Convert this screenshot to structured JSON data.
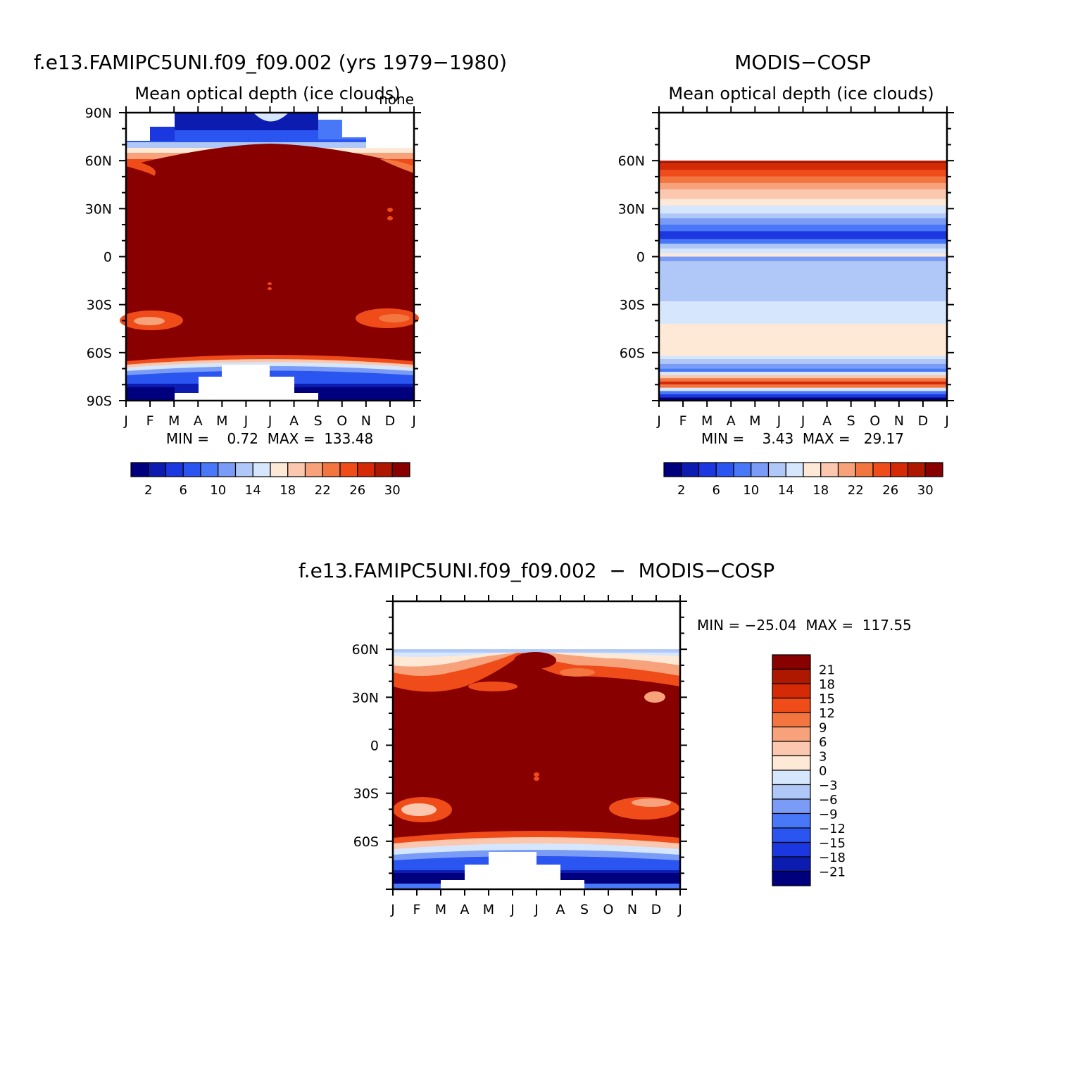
{
  "chart_data": [
    {
      "type": "heatmap",
      "title": "f.e13.FAMIPC5UNI.f09_f09.002 (yrs 1979−1980)",
      "subtitle": "Mean optical depth (ice clouds)",
      "units": "none",
      "x_ticks": [
        "J",
        "F",
        "M",
        "A",
        "M",
        "J",
        "J",
        "A",
        "S",
        "O",
        "N",
        "D",
        "J"
      ],
      "y_ticks": [
        "90N",
        "60N",
        "30N",
        "0",
        "30S",
        "60S",
        "90S"
      ],
      "y_tick_values": [
        90,
        60,
        30,
        0,
        -30,
        -60,
        -90
      ],
      "ylim": [
        -90,
        90
      ],
      "stats": "MIN =    0.72  MAX =  133.48",
      "min": 0.72,
      "max": 133.48,
      "colorbar_ticks": [
        "2",
        "6",
        "10",
        "14",
        "18",
        "22",
        "26",
        "30"
      ],
      "colorbar_levels": [
        0,
        2,
        4,
        6,
        8,
        10,
        12,
        14,
        16,
        18,
        20,
        22,
        24,
        26,
        28,
        30,
        32
      ]
    },
    {
      "type": "heatmap",
      "title": "MODIS−COSP",
      "subtitle": "Mean optical depth (ice clouds)",
      "x_ticks": [
        "J",
        "F",
        "M",
        "A",
        "M",
        "J",
        "J",
        "A",
        "S",
        "O",
        "N",
        "D",
        "J"
      ],
      "y_ticks": [
        "60N",
        "30N",
        "0",
        "30S",
        "60S"
      ],
      "y_tick_values": [
        60,
        30,
        0,
        -30,
        -60
      ],
      "ylim": [
        -90,
        90
      ],
      "stats": "MIN =    3.43  MAX =   29.17",
      "min": 3.43,
      "max": 29.17,
      "colorbar_ticks": [
        "2",
        "6",
        "10",
        "14",
        "18",
        "22",
        "26",
        "30"
      ]
    },
    {
      "type": "heatmap",
      "title": "f.e13.FAMIPC5UNI.f09_f09.002  −  MODIS−COSP",
      "x_ticks": [
        "J",
        "F",
        "M",
        "A",
        "M",
        "J",
        "J",
        "A",
        "S",
        "O",
        "N",
        "D",
        "J"
      ],
      "y_ticks": [
        "60N",
        "30N",
        "0",
        "30S",
        "60S"
      ],
      "y_tick_values": [
        60,
        30,
        0,
        -30,
        -60
      ],
      "ylim": [
        -90,
        90
      ],
      "stats": "MIN = −25.04  MAX =  117.55",
      "min": -25.04,
      "max": 117.55,
      "colorbar_ticks": [
        "21",
        "18",
        "15",
        "12",
        "9",
        "6",
        "3",
        "0",
        "−3",
        "−6",
        "−9",
        "−12",
        "−15",
        "−18",
        "−21"
      ]
    }
  ],
  "palette": [
    "#00007f",
    "#0d1cb0",
    "#1a37e0",
    "#2b55f0",
    "#4878f8",
    "#7a9cf6",
    "#afc8f8",
    "#d6e6fd",
    "#fee8d6",
    "#fbc7ae",
    "#f7a27a",
    "#f3753f",
    "#f04c1a",
    "#d52a06",
    "#ae1800",
    "#880000"
  ]
}
